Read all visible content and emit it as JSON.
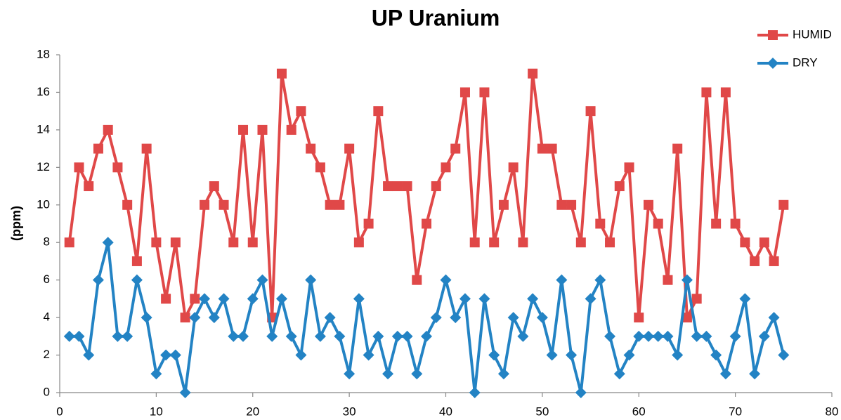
{
  "chart_data": {
    "type": "line",
    "title": "UP Uranium",
    "y_label": "(ppm)",
    "x": [
      1,
      2,
      3,
      4,
      5,
      6,
      7,
      8,
      9,
      10,
      11,
      12,
      13,
      14,
      15,
      16,
      17,
      18,
      19,
      20,
      21,
      22,
      23,
      24,
      25,
      26,
      27,
      28,
      29,
      30,
      31,
      32,
      33,
      34,
      35,
      36,
      37,
      38,
      39,
      40,
      41,
      42,
      43,
      44,
      45,
      46,
      47,
      48,
      49,
      50,
      51,
      52,
      53,
      54,
      55,
      56,
      57,
      58,
      59,
      60,
      61,
      62,
      63,
      64,
      65,
      66,
      67,
      68,
      69,
      70,
      71,
      72,
      73,
      74,
      75
    ],
    "series": [
      {
        "name": "HUMID",
        "color": "#e04848",
        "marker": "square",
        "values": [
          8,
          12,
          11,
          13,
          14,
          12,
          10,
          7,
          13,
          8,
          5,
          8,
          4,
          5,
          10,
          11,
          10,
          8,
          14,
          8,
          14,
          4,
          17,
          14,
          15,
          13,
          12,
          10,
          10,
          13,
          8,
          9,
          15,
          11,
          11,
          11,
          6,
          9,
          11,
          12,
          13,
          16,
          8,
          16,
          8,
          10,
          12,
          8,
          17,
          13,
          13,
          10,
          10,
          8,
          15,
          9,
          8,
          11,
          12,
          4,
          10,
          9,
          6,
          13,
          4,
          5,
          16,
          9,
          16,
          9,
          8,
          7,
          8,
          7,
          10
        ]
      },
      {
        "name": "DRY",
        "color": "#2383c4",
        "marker": "diamond",
        "values": [
          3,
          3,
          2,
          6,
          8,
          3,
          3,
          6,
          4,
          1,
          2,
          2,
          0,
          4,
          5,
          4,
          5,
          3,
          3,
          5,
          6,
          3,
          5,
          3,
          2,
          6,
          3,
          4,
          3,
          1,
          5,
          2,
          3,
          1,
          3,
          3,
          1,
          3,
          4,
          6,
          4,
          5,
          0,
          5,
          2,
          1,
          4,
          3,
          5,
          4,
          2,
          6,
          2,
          0,
          5,
          6,
          3,
          1,
          2,
          3,
          3,
          3,
          3,
          2,
          6,
          3,
          3,
          2,
          1,
          3,
          5,
          1,
          3,
          4,
          2
        ]
      }
    ],
    "xlim": [
      0,
      80
    ],
    "xticks": [
      0,
      10,
      20,
      30,
      40,
      50,
      60,
      70,
      80
    ],
    "ylim": [
      0,
      18
    ],
    "yticks": [
      0,
      2,
      4,
      6,
      8,
      10,
      12,
      14,
      16,
      18
    ],
    "legend": "top-right",
    "grid": false
  }
}
